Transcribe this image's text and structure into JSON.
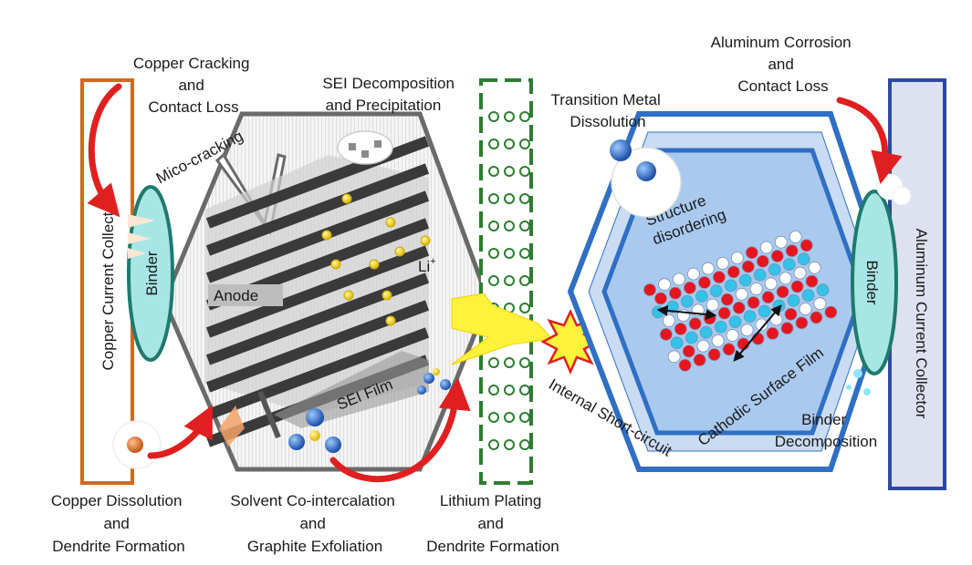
{
  "labels": {
    "copper_cracking": [
      "Copper Cracking",
      "and",
      "Contact Loss"
    ],
    "sei_decomposition": [
      "SEI Decomposition",
      "and Precipitation"
    ],
    "transition_metal": [
      "Transition Metal",
      "Dissolution"
    ],
    "aluminum_corrosion": [
      "Aluminum Corrosion",
      "and",
      "Contact Loss"
    ],
    "mico_cracking": "Mico-cracking",
    "anode": "Anode",
    "li_ion": "Li",
    "li_sup": "+",
    "sei_film": "SEI Film",
    "structure_disordering": [
      "Structure",
      "disordering"
    ],
    "binder_left": "Binder",
    "binder_right": "Binder",
    "copper_collector": "Copper Current Collector",
    "aluminum_collector": "Aluminum Current Collector",
    "internal_short": "Internal Short-circuit",
    "cathodic_film": "Cathodic Surface Film",
    "binder_decomposition": [
      "Binder",
      "Decomposition"
    ],
    "copper_dissolution": [
      "Copper Dissolution",
      "and",
      "Dendrite Formation"
    ],
    "solvent_cointercalation": [
      "Solvent Co-intercalation",
      "and",
      "Graphite Exfoliation"
    ],
    "lithium_plating": [
      "Lithium Plating",
      "and",
      "Dendrite Formation"
    ]
  },
  "colors": {
    "copper": "#d2691e",
    "aluminum_border": "#2e4a9e",
    "aluminum_fill": "#dde1f0",
    "binder_border": "#1f7a6e",
    "binder_fill": "#a8e6e6",
    "cathode_blue": "#2f6fc4",
    "cathode_fill": "#a9c9ee",
    "separator": "#2e7d32",
    "arrow_red": "#e02020",
    "li_yellow": "#f5d60a",
    "atom_red": "#e8141e",
    "atom_cyan": "#33c2e8"
  }
}
